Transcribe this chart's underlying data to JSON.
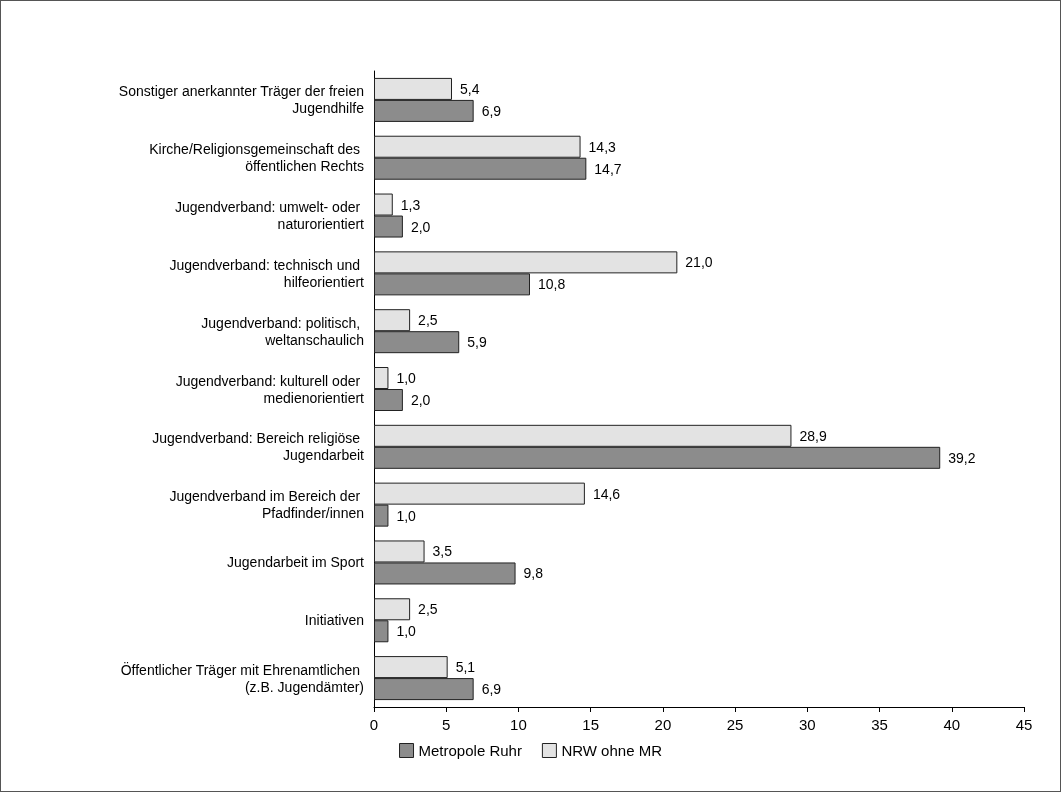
{
  "chart_data": {
    "type": "bar",
    "orientation": "horizontal",
    "categories": [
      "Sonstiger anerkannter Träger der freien Jugendhilfe",
      "Kirche/Religionsgemeinschaft des öffentlichen Rechts",
      "Jugendverband: umwelt- oder naturorientiert",
      "Jugendverband: technisch und hilfeorientiert",
      "Jugendverband: politisch, weltanschaulich",
      "Jugendverband: kulturell oder medienorientiert",
      "Jugendverband: Bereich religiöse Jugendarbeit",
      "Jugendverband im Bereich der Pfadfinder/innen",
      "Jugendarbeit im Sport",
      "Initiativen",
      "Öffentlicher Träger mit Ehrenamtlichen (z.B. Jugendämter)"
    ],
    "series": [
      {
        "name": "Metropole Ruhr",
        "color": "#8c8c8c",
        "values": [
          6.9,
          14.7,
          2.0,
          10.8,
          5.9,
          2.0,
          39.2,
          1.0,
          9.8,
          1.0,
          6.9
        ],
        "value_labels": [
          "6,9",
          "14,7",
          "2,0",
          "10,8",
          "5,9",
          "2,0",
          "39,2",
          "1,0",
          "9,8",
          "1,0",
          "6,9"
        ]
      },
      {
        "name": "NRW ohne MR",
        "color": "#e3e3e3",
        "values": [
          5.4,
          14.3,
          1.3,
          21.0,
          2.5,
          1.0,
          28.9,
          14.6,
          3.5,
          2.5,
          5.1
        ],
        "value_labels": [
          "5,4",
          "14,3",
          "1,3",
          "21,0",
          "2,5",
          "1,0",
          "28,9",
          "14,6",
          "3,5",
          "2,5",
          "5,1"
        ]
      }
    ],
    "xlim": [
      0,
      45
    ],
    "xticks": [
      0,
      5,
      10,
      15,
      20,
      25,
      30,
      35,
      40,
      45
    ],
    "grid": false,
    "legend": "bottom"
  }
}
